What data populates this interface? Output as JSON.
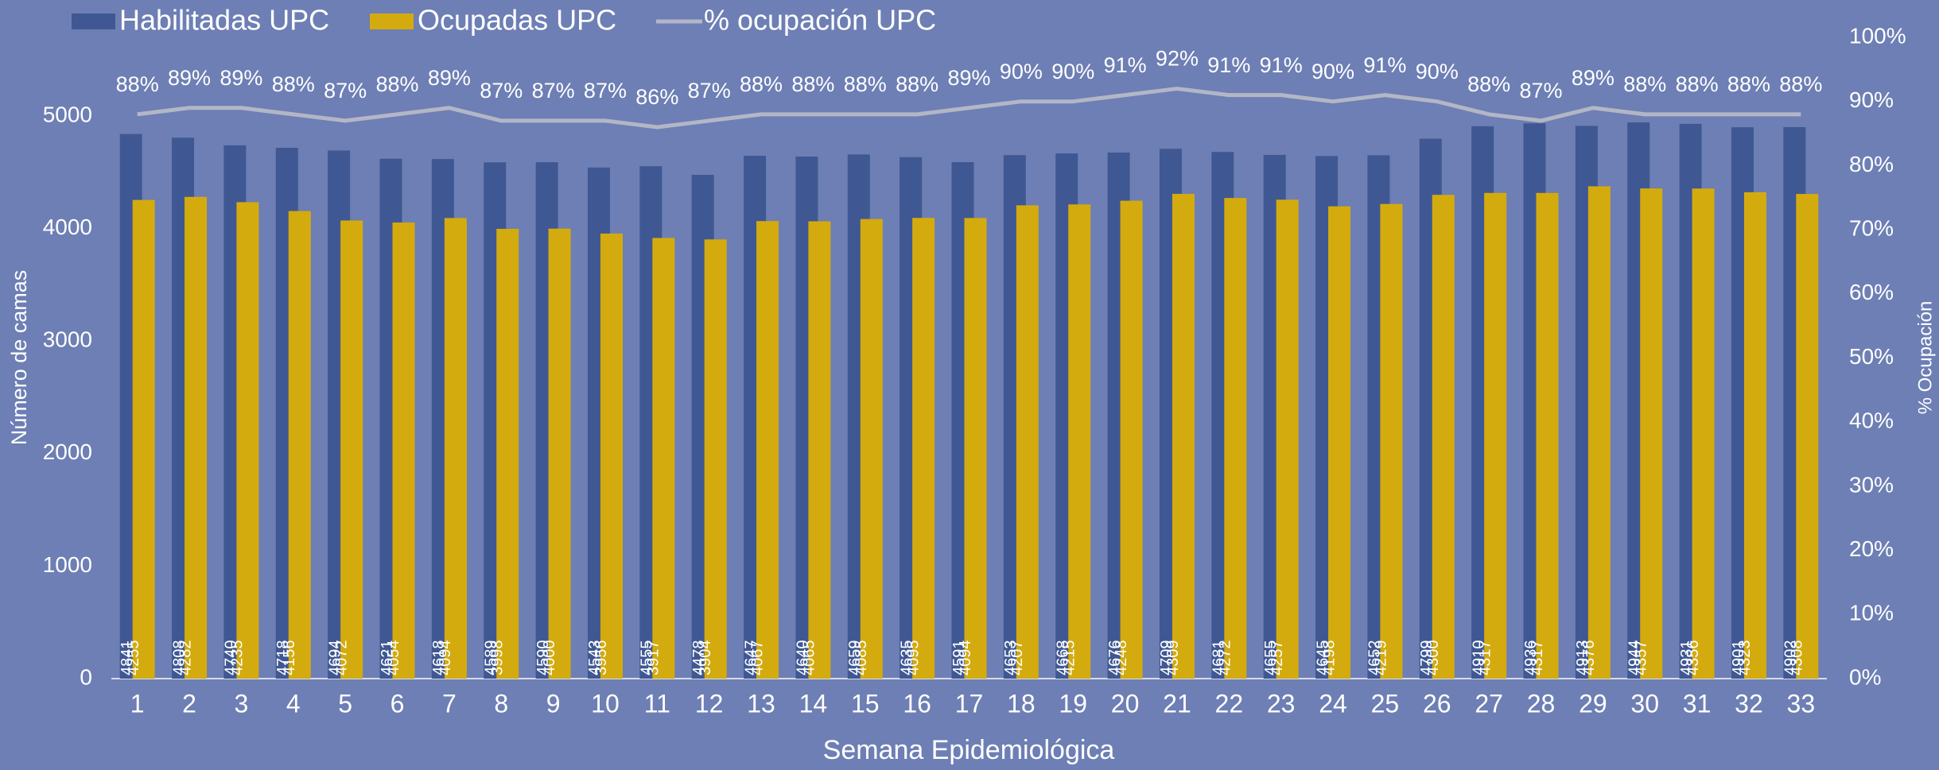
{
  "chart_data": {
    "type": "bar",
    "x_label": "Semana Epidemiológica",
    "y_label": "Número de camas",
    "y2_label": "% Ocupación",
    "categories": [
      "1",
      "2",
      "3",
      "4",
      "5",
      "6",
      "7",
      "8",
      "9",
      "10",
      "11",
      "12",
      "13",
      "14",
      "15",
      "16",
      "17",
      "18",
      "19",
      "20",
      "21",
      "22",
      "23",
      "24",
      "25",
      "26",
      "27",
      "28",
      "29",
      "30",
      "31",
      "32",
      "33"
    ],
    "series": [
      {
        "name": "Habilitadas UPC",
        "type": "bar",
        "color": "#3f5893",
        "values": [
          4841,
          4808,
          4740,
          4718,
          4694,
          4621,
          4618,
          4589,
          4590,
          4543,
          4555,
          4478,
          4647,
          4640,
          4659,
          4635,
          4591,
          4653,
          4668,
          4676,
          4709,
          4681,
          4655,
          4645,
          4652,
          4799,
          4910,
          4936,
          4913,
          4944,
          4931,
          4901,
          4902
        ]
      },
      {
        "name": "Ocupadas UPC",
        "type": "bar",
        "color": "#d4ab0e",
        "values": [
          4255,
          4282,
          4235,
          4156,
          4072,
          4054,
          4094,
          3998,
          4000,
          3956,
          3917,
          3904,
          4067,
          4065,
          4085,
          4095,
          4094,
          4207,
          4215,
          4248,
          4309,
          4272,
          4257,
          4198,
          4219,
          4300,
          4317,
          4317,
          4376,
          4357,
          4356,
          4323,
          4308
        ]
      },
      {
        "name": "% ocupación UPC",
        "type": "line",
        "color": "#b3b6c6",
        "axis": "y2",
        "values": [
          88,
          89,
          89,
          88,
          87,
          88,
          89,
          87,
          87,
          87,
          86,
          87,
          88,
          88,
          88,
          88,
          89,
          90,
          90,
          91,
          92,
          91,
          91,
          90,
          91,
          90,
          88,
          87,
          89,
          88,
          88,
          88,
          88
        ],
        "value_labels": [
          "88%",
          "89%",
          "89%",
          "88%",
          "87%",
          "88%",
          "89%",
          "87%",
          "87%",
          "87%",
          "86%",
          "87%",
          "88%",
          "88%",
          "88%",
          "88%",
          "89%",
          "90%",
          "90%",
          "91%",
          "92%",
          "91%",
          "91%",
          "90%",
          "91%",
          "90%",
          "88%",
          "87%",
          "89%",
          "88%",
          "88%",
          "88%",
          "88%"
        ]
      }
    ],
    "ylim": [
      0,
      5700
    ],
    "yticks": [
      0,
      1000,
      2000,
      3000,
      4000,
      5000
    ],
    "y2lim": [
      0,
      100
    ],
    "y2ticks": [
      {
        "value": 0,
        "label": "0%"
      },
      {
        "value": 10,
        "label": "10%"
      },
      {
        "value": 20,
        "label": "20%"
      },
      {
        "value": 30,
        "label": "30%"
      },
      {
        "value": 40,
        "label": "40%"
      },
      {
        "value": 50,
        "label": "50%"
      },
      {
        "value": 60,
        "label": "60%"
      },
      {
        "value": 70,
        "label": "70%"
      },
      {
        "value": 80,
        "label": "80%"
      },
      {
        "value": 90,
        "label": "90%"
      },
      {
        "value": 100,
        "label": "100%"
      }
    ],
    "legend": "top-left"
  }
}
